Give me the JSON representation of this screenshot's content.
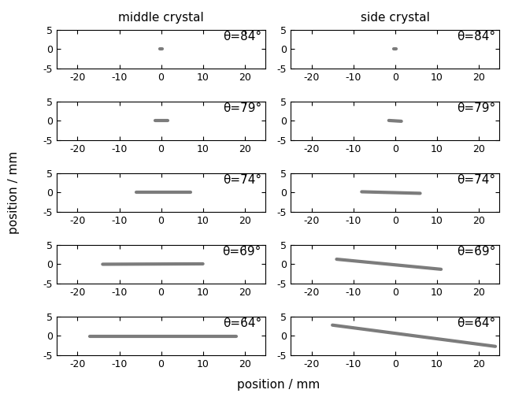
{
  "xlabel": "position / mm",
  "ylabel": "position / mm",
  "chart_data": [
    {
      "type": "line",
      "title": "middle crystal",
      "annotation": "θ=84°",
      "x": [
        -0.3,
        0.3
      ],
      "values": [
        0.1,
        0.1
      ],
      "color": "#444444",
      "xlim": [
        -25,
        25
      ],
      "ylim": [
        -5,
        5
      ],
      "xticks": [
        -20,
        -10,
        0,
        10,
        20
      ],
      "yticks": [
        -5,
        0,
        5
      ]
    },
    {
      "type": "line",
      "title": "side crystal",
      "annotation": "θ=84°",
      "x": [
        -0.3,
        0.3
      ],
      "values": [
        0.1,
        0.1
      ],
      "color": "#444444",
      "xlim": [
        -25,
        25
      ],
      "ylim": [
        -5,
        5
      ],
      "xticks": [
        -20,
        -10,
        0,
        10,
        20
      ],
      "yticks": [
        -5,
        0,
        5
      ]
    },
    {
      "type": "line",
      "annotation": "θ=79°",
      "x": [
        -1.5,
        1.5
      ],
      "values": [
        0.0,
        0.0
      ],
      "color": "#444444",
      "xlim": [
        -25,
        25
      ],
      "ylim": [
        -5,
        5
      ],
      "xticks": [
        -20,
        -10,
        0,
        10,
        20
      ],
      "yticks": [
        -5,
        0,
        5
      ]
    },
    {
      "type": "line",
      "annotation": "θ=79°",
      "x": [
        -1.5,
        1.5
      ],
      "values": [
        0.1,
        -0.1
      ],
      "color": "#444444",
      "xlim": [
        -25,
        25
      ],
      "ylim": [
        -5,
        5
      ],
      "xticks": [
        -20,
        -10,
        0,
        10,
        20
      ],
      "yticks": [
        -5,
        0,
        5
      ]
    },
    {
      "type": "line",
      "annotation": "θ=74°",
      "x": [
        -6,
        7
      ],
      "values": [
        0.1,
        0.1
      ],
      "color": "#444444",
      "xlim": [
        -25,
        25
      ],
      "ylim": [
        -5,
        5
      ],
      "xticks": [
        -20,
        -10,
        0,
        10,
        20
      ],
      "yticks": [
        -5,
        0,
        5
      ]
    },
    {
      "type": "line",
      "annotation": "θ=74°",
      "x": [
        -8,
        6
      ],
      "values": [
        0.2,
        -0.2
      ],
      "color": "#444444",
      "xlim": [
        -25,
        25
      ],
      "ylim": [
        -5,
        5
      ],
      "xticks": [
        -20,
        -10,
        0,
        10,
        20
      ],
      "yticks": [
        -5,
        0,
        5
      ]
    },
    {
      "type": "line",
      "annotation": "θ=69°",
      "x": [
        -14,
        10
      ],
      "values": [
        0.0,
        0.1
      ],
      "color": "#444444",
      "xlim": [
        -25,
        25
      ],
      "ylim": [
        -5,
        5
      ],
      "xticks": [
        -20,
        -10,
        0,
        10,
        20
      ],
      "yticks": [
        -5,
        0,
        5
      ]
    },
    {
      "type": "line",
      "annotation": "θ=69°",
      "x": [
        -14,
        11
      ],
      "values": [
        1.3,
        -1.3
      ],
      "color": "#444444",
      "xlim": [
        -25,
        25
      ],
      "ylim": [
        -5,
        5
      ],
      "xticks": [
        -20,
        -10,
        0,
        10,
        20
      ],
      "yticks": [
        -5,
        0,
        5
      ]
    },
    {
      "type": "line",
      "annotation": "θ=64°",
      "x": [
        -17,
        18
      ],
      "values": [
        -0.2,
        -0.2
      ],
      "color": "#444444",
      "xlim": [
        -25,
        25
      ],
      "ylim": [
        -5,
        5
      ],
      "xticks": [
        -20,
        -10,
        0,
        10,
        20
      ],
      "yticks": [
        -5,
        0,
        5
      ]
    },
    {
      "type": "line",
      "annotation": "θ=64°",
      "x": [
        -15,
        24
      ],
      "values": [
        2.8,
        -2.7
      ],
      "color": "#444444",
      "xlim": [
        -25,
        25
      ],
      "ylim": [
        -5,
        5
      ],
      "xticks": [
        -20,
        -10,
        0,
        10,
        20
      ],
      "yticks": [
        -5,
        0,
        5
      ]
    }
  ]
}
